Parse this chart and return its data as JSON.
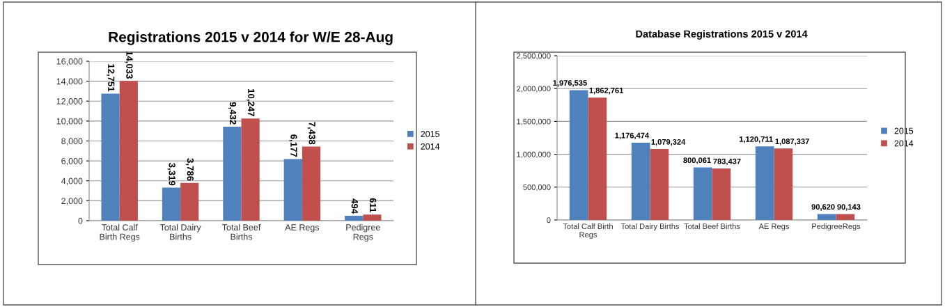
{
  "chart_data": [
    {
      "type": "bar",
      "title": "Registrations 2015 v 2014 for W/E 28-Aug",
      "categories": [
        "Total Calf\nBirth Regs",
        "Total Dairy\nBirths",
        "Total Beef\nBirths",
        "AE Regs",
        "Pedigree\nRegs"
      ],
      "series": [
        {
          "name": "2015",
          "color": "#4f81bd",
          "values": [
            12751,
            3319,
            9432,
            6177,
            494
          ],
          "value_labels": [
            "12,751",
            "3,319",
            "9,432",
            "6,177",
            "494"
          ]
        },
        {
          "name": "2014",
          "color": "#c0504d",
          "values": [
            14033,
            3786,
            10247,
            7438,
            611
          ],
          "value_labels": [
            "14,033",
            "3,786",
            "10,247",
            "7,438",
            "611"
          ]
        }
      ],
      "ylim": [
        0,
        16000
      ],
      "yticks": [
        {
          "value": 0,
          "label": "0"
        },
        {
          "value": 2000,
          "label": "2,000"
        },
        {
          "value": 4000,
          "label": "4,000"
        },
        {
          "value": 6000,
          "label": "6,000"
        },
        {
          "value": 8000,
          "label": "8,000"
        },
        {
          "value": 10000,
          "label": "10,000"
        },
        {
          "value": 12000,
          "label": "12,000"
        },
        {
          "value": 14000,
          "label": "14,000"
        },
        {
          "value": 16000,
          "label": "16,000"
        }
      ],
      "grid": "y",
      "legend": "right"
    },
    {
      "type": "bar",
      "title": "Database Registrations 2015 v 2014",
      "categories": [
        "Total Calf Birth\nRegs",
        "Total Dairy Births",
        "Total Beef Births",
        "AE Regs",
        "PedigreeRegs"
      ],
      "series": [
        {
          "name": "2015",
          "color": "#4f81bd",
          "values": [
            1976535,
            1176474,
            800061,
            1120711,
            90620
          ],
          "value_labels": [
            "1,976,535",
            "1,176,474",
            "800,061",
            "1,120,711",
            "90,620"
          ]
        },
        {
          "name": "2014",
          "color": "#c0504d",
          "values": [
            1862761,
            1079324,
            783437,
            1087337,
            90143
          ],
          "value_labels": [
            "1,862,761",
            "1,079,324",
            "783,437",
            "1,087,337",
            "90,143"
          ]
        }
      ],
      "ylim": [
        0,
        2500000
      ],
      "yticks": [
        {
          "value": 0,
          "label": "0"
        },
        {
          "value": 500000,
          "label": "500,000"
        },
        {
          "value": 1000000,
          "label": "1,000,000"
        },
        {
          "value": 1500000,
          "label": "1,500,000"
        },
        {
          "value": 2000000,
          "label": "2,000,000"
        },
        {
          "value": 2500000,
          "label": "2,500,000"
        }
      ],
      "grid": "y",
      "legend": "right"
    }
  ]
}
